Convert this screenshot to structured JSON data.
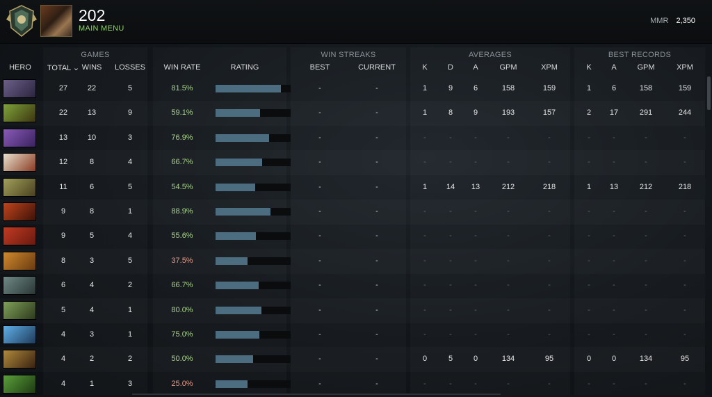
{
  "header": {
    "username": "202",
    "menu_label": "MAIN MENU",
    "mmr_label": "MMR",
    "mmr_value": "2,350"
  },
  "groups": {
    "games": "GAMES",
    "win_streaks": "WIN STREAKS",
    "averages": "AVERAGES",
    "best_records": "BEST RECORDS"
  },
  "columns": {
    "hero": "HERO",
    "total": "TOTAL ⌄",
    "wins": "WINS",
    "losses": "LOSSES",
    "win_rate": "WIN RATE",
    "rating": "RATING",
    "best": "BEST",
    "current": "CURRENT",
    "avg_k": "K",
    "avg_d": "D",
    "avg_a": "A",
    "avg_gpm": "GPM",
    "avg_xpm": "XPM",
    "best_k": "K",
    "best_a": "A",
    "best_gpm": "GPM",
    "best_xpm": "XPM"
  },
  "colors": {
    "win_rate_good": "#a9d48a",
    "win_rate_low": "#e09a86",
    "rating_bar": "#4c6d80"
  },
  "rows": [
    {
      "portrait": [
        "#6c5f88",
        "#2b2540"
      ],
      "total": "27",
      "wins": "22",
      "losses": "5",
      "win_rate": "81.5%",
      "rating": 0.87,
      "best": "-",
      "current": "-",
      "avg_k": "1",
      "avg_d": "9",
      "avg_a": "6",
      "avg_gpm": "158",
      "avg_xpm": "159",
      "best_k": "1",
      "best_a": "6",
      "best_gpm": "158",
      "best_xpm": "159"
    },
    {
      "portrait": [
        "#7ea43a",
        "#3d3510"
      ],
      "total": "22",
      "wins": "13",
      "losses": "9",
      "win_rate": "59.1%",
      "rating": 0.59,
      "best": "-",
      "current": "-",
      "avg_k": "1",
      "avg_d": "8",
      "avg_a": "9",
      "avg_gpm": "193",
      "avg_xpm": "157",
      "best_k": "2",
      "best_a": "17",
      "best_gpm": "291",
      "best_xpm": "244"
    },
    {
      "portrait": [
        "#8a5bb8",
        "#3a2260"
      ],
      "total": "13",
      "wins": "10",
      "losses": "3",
      "win_rate": "76.9%",
      "rating": 0.71,
      "best": "-",
      "current": "-",
      "avg_k": "-",
      "avg_d": "-",
      "avg_a": "-",
      "avg_gpm": "-",
      "avg_xpm": "-",
      "best_k": "-",
      "best_a": "-",
      "best_gpm": "-",
      "best_xpm": "-"
    },
    {
      "portrait": [
        "#e8e2cf",
        "#8a3b22"
      ],
      "total": "12",
      "wins": "8",
      "losses": "4",
      "win_rate": "66.7%",
      "rating": 0.62,
      "best": "-",
      "current": "-",
      "avg_k": "-",
      "avg_d": "-",
      "avg_a": "-",
      "avg_gpm": "-",
      "avg_xpm": "-",
      "best_k": "-",
      "best_a": "-",
      "best_gpm": "-",
      "best_xpm": "-"
    },
    {
      "portrait": [
        "#a2a05a",
        "#4a4020"
      ],
      "total": "11",
      "wins": "6",
      "losses": "5",
      "win_rate": "54.5%",
      "rating": 0.53,
      "best": "-",
      "current": "-",
      "avg_k": "1",
      "avg_d": "14",
      "avg_a": "13",
      "avg_gpm": "212",
      "avg_xpm": "218",
      "best_k": "1",
      "best_a": "13",
      "best_gpm": "212",
      "best_xpm": "218"
    },
    {
      "portrait": [
        "#c0441c",
        "#3d1208"
      ],
      "total": "9",
      "wins": "8",
      "losses": "1",
      "win_rate": "88.9%",
      "rating": 0.73,
      "best": "-",
      "current": "-",
      "avg_k": "-",
      "avg_d": "-",
      "avg_a": "-",
      "avg_gpm": "-",
      "avg_xpm": "-",
      "best_k": "-",
      "best_a": "-",
      "best_gpm": "-",
      "best_xpm": "-"
    },
    {
      "portrait": [
        "#c13a22",
        "#6a1a10"
      ],
      "total": "9",
      "wins": "5",
      "losses": "4",
      "win_rate": "55.6%",
      "rating": 0.54,
      "best": "-",
      "current": "-",
      "avg_k": "-",
      "avg_d": "-",
      "avg_a": "-",
      "avg_gpm": "-",
      "avg_xpm": "-",
      "best_k": "-",
      "best_a": "-",
      "best_gpm": "-",
      "best_xpm": "-"
    },
    {
      "portrait": [
        "#d08a2e",
        "#6a3a10"
      ],
      "total": "8",
      "wins": "3",
      "losses": "5",
      "win_rate": "37.5%",
      "rating": 0.43,
      "best": "-",
      "current": "-",
      "avg_k": "-",
      "avg_d": "-",
      "avg_a": "-",
      "avg_gpm": "-",
      "avg_xpm": "-",
      "best_k": "-",
      "best_a": "-",
      "best_gpm": "-",
      "best_xpm": "-"
    },
    {
      "portrait": [
        "#6f8a86",
        "#2a3634"
      ],
      "total": "6",
      "wins": "4",
      "losses": "2",
      "win_rate": "66.7%",
      "rating": 0.57,
      "best": "-",
      "current": "-",
      "avg_k": "-",
      "avg_d": "-",
      "avg_a": "-",
      "avg_gpm": "-",
      "avg_xpm": "-",
      "best_k": "-",
      "best_a": "-",
      "best_gpm": "-",
      "best_xpm": "-"
    },
    {
      "portrait": [
        "#7fa05a",
        "#2e3a1c"
      ],
      "total": "5",
      "wins": "4",
      "losses": "1",
      "win_rate": "80.0%",
      "rating": 0.61,
      "best": "-",
      "current": "-",
      "avg_k": "-",
      "avg_d": "-",
      "avg_a": "-",
      "avg_gpm": "-",
      "avg_xpm": "-",
      "best_k": "-",
      "best_a": "-",
      "best_gpm": "-",
      "best_xpm": "-"
    },
    {
      "portrait": [
        "#5fb0e8",
        "#1e3a5a"
      ],
      "total": "4",
      "wins": "3",
      "losses": "1",
      "win_rate": "75.0%",
      "rating": 0.58,
      "best": "-",
      "current": "-",
      "avg_k": "-",
      "avg_d": "-",
      "avg_a": "-",
      "avg_gpm": "-",
      "avg_xpm": "-",
      "best_k": "-",
      "best_a": "-",
      "best_gpm": "-",
      "best_xpm": "-"
    },
    {
      "portrait": [
        "#b08a3c",
        "#3a2210"
      ],
      "total": "4",
      "wins": "2",
      "losses": "2",
      "win_rate": "50.0%",
      "rating": 0.5,
      "best": "-",
      "current": "-",
      "avg_k": "0",
      "avg_d": "5",
      "avg_a": "0",
      "avg_gpm": "134",
      "avg_xpm": "95",
      "best_k": "0",
      "best_a": "0",
      "best_gpm": "134",
      "best_xpm": "95"
    },
    {
      "portrait": [
        "#5aa03a",
        "#1e3a12"
      ],
      "total": "4",
      "wins": "1",
      "losses": "3",
      "win_rate": "25.0%",
      "rating": 0.43,
      "best": "-",
      "current": "-",
      "avg_k": "-",
      "avg_d": "-",
      "avg_a": "-",
      "avg_gpm": "-",
      "avg_xpm": "-",
      "best_k": "-",
      "best_a": "-",
      "best_gpm": "-",
      "best_xpm": "-"
    }
  ]
}
